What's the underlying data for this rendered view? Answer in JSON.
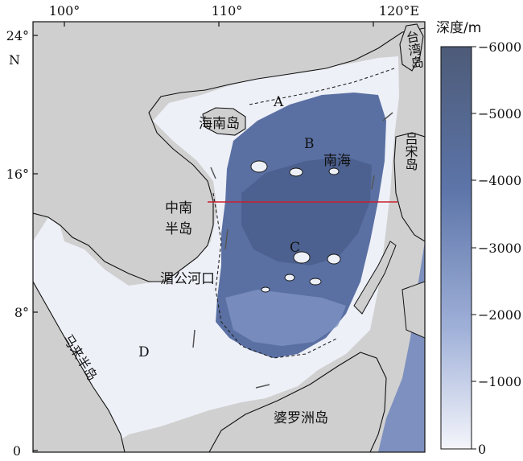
{
  "map": {
    "lon_ticks": [
      "100°",
      "110°",
      "120°E"
    ],
    "lat_ticks": [
      "24°",
      "N",
      "16°",
      "8°",
      "0"
    ],
    "region_labels": {
      "A": "A",
      "B": "B",
      "C": "C",
      "D": "D",
      "hainan": "海南岛",
      "nanhai": "南海",
      "luzon": "吕宋岛",
      "indochina_line1": "中南",
      "indochina_line2": "半岛",
      "mekong": "湄公河口",
      "malay": "马来半岛",
      "borneo": "婆罗洲岛",
      "taiwan": "台湾岛"
    },
    "colors": {
      "land": "#cfcfcf",
      "shelf": "#eef0f8",
      "deep": "#4f6591",
      "section_line": "#cc1f2e"
    }
  },
  "colorbar": {
    "title": "深度/m",
    "ticks": [
      "−6000",
      "−5000",
      "−4000",
      "−3000",
      "−2000",
      "−1000",
      "0"
    ]
  }
}
